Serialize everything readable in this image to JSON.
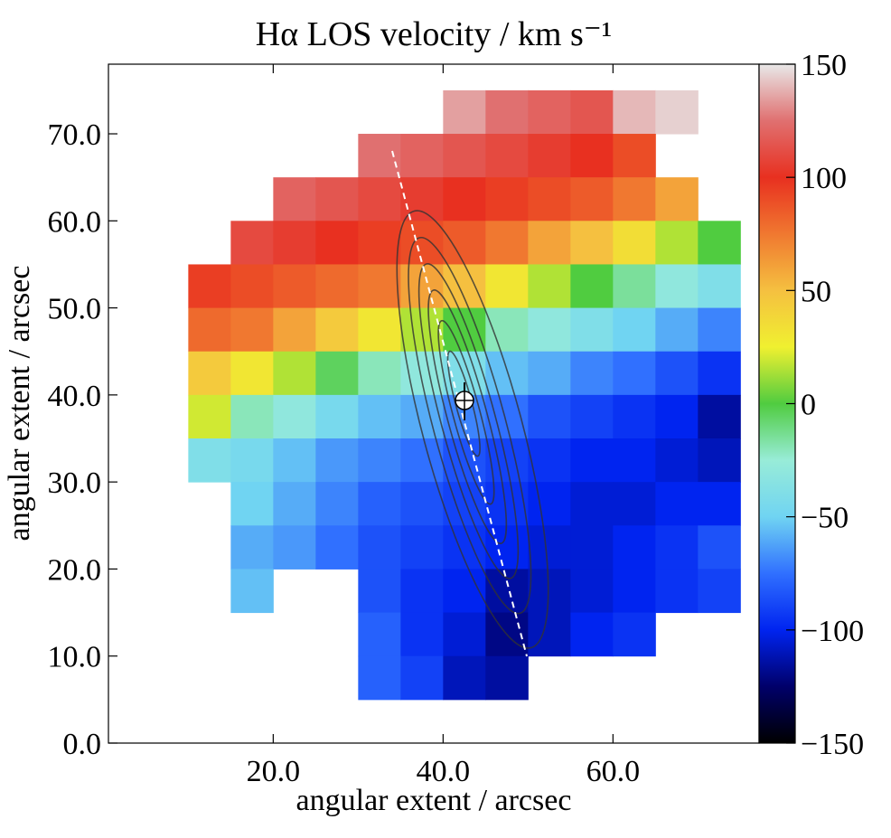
{
  "chart_data": {
    "type": "heatmap",
    "title": "Hα LOS velocity / km s⁻¹",
    "x_label": "angular extent / arcsec",
    "y_label": "angular extent / arcsec",
    "xlim": [
      0.6,
      77.2
    ],
    "ylim": [
      0,
      78
    ],
    "xticks": [
      {
        "value": 20,
        "label": "20.0"
      },
      {
        "value": 40,
        "label": "40.0"
      },
      {
        "value": 60,
        "label": "60.0"
      }
    ],
    "yticks": [
      {
        "value": 0,
        "label": "0.0"
      },
      {
        "value": 10,
        "label": "10.0"
      },
      {
        "value": 20,
        "label": "20.0"
      },
      {
        "value": 30,
        "label": "30.0"
      },
      {
        "value": 40,
        "label": "40.0"
      },
      {
        "value": 50,
        "label": "50.0"
      },
      {
        "value": 60,
        "label": "60.0"
      },
      {
        "value": 70,
        "label": "70.0"
      }
    ],
    "cell_size": 5,
    "x": [
      12.5,
      17.5,
      22.5,
      27.5,
      32.5,
      37.5,
      42.5,
      47.5,
      52.5,
      57.5,
      62.5,
      67.5,
      72.5
    ],
    "y": [
      72.5,
      67.5,
      62.5,
      57.5,
      52.5,
      47.5,
      42.5,
      37.5,
      32.5,
      27.5,
      22.5,
      17.5,
      12.5,
      7.5
    ],
    "values": [
      [
        null,
        null,
        null,
        null,
        null,
        null,
        135,
        125,
        120,
        115,
        140,
        145,
        null
      ],
      [
        null,
        null,
        null,
        null,
        125,
        120,
        115,
        110,
        105,
        100,
        90,
        null,
        null
      ],
      [
        null,
        null,
        120,
        115,
        110,
        105,
        100,
        95,
        90,
        85,
        75,
        60,
        null
      ],
      [
        null,
        110,
        105,
        100,
        95,
        90,
        85,
        75,
        60,
        50,
        35,
        15,
        0
      ],
      [
        95,
        90,
        85,
        80,
        75,
        60,
        50,
        30,
        15,
        0,
        -15,
        -30,
        -40
      ],
      [
        80,
        75,
        60,
        45,
        30,
        15,
        0,
        -20,
        -30,
        -40,
        -50,
        -60,
        -70
      ],
      [
        45,
        30,
        15,
        -5,
        -20,
        -30,
        -40,
        -55,
        -60,
        -70,
        -75,
        -85,
        -95
      ],
      [
        20,
        -20,
        -30,
        -45,
        -55,
        -60,
        -70,
        -75,
        -85,
        -90,
        -95,
        -100,
        -115
      ],
      [
        -40,
        -45,
        -55,
        -65,
        -70,
        -75,
        -85,
        -90,
        -95,
        -100,
        -100,
        -105,
        -110
      ],
      [
        null,
        -50,
        -60,
        -70,
        -80,
        -85,
        -90,
        -95,
        -100,
        -105,
        -105,
        -100,
        -100
      ],
      [
        null,
        -60,
        -65,
        -75,
        -85,
        -90,
        -95,
        -100,
        -105,
        -105,
        -100,
        -95,
        -85
      ],
      [
        null,
        -55,
        null,
        null,
        -85,
        -95,
        -100,
        -115,
        -110,
        -105,
        -100,
        -95,
        -90
      ],
      [
        null,
        null,
        null,
        null,
        -80,
        -95,
        -105,
        -120,
        -110,
        -100,
        -95,
        null,
        null
      ],
      [
        null,
        null,
        null,
        null,
        -80,
        -90,
        -110,
        -115,
        null,
        null,
        null,
        null,
        null
      ]
    ],
    "clim": [
      -150,
      150
    ],
    "colorbar_ticks": [
      {
        "value": 150,
        "label": "150"
      },
      {
        "value": 100,
        "label": "100"
      },
      {
        "value": 50,
        "label": "50"
      },
      {
        "value": 0,
        "label": "0"
      },
      {
        "value": -50,
        "label": "−50"
      },
      {
        "value": -100,
        "label": "−100"
      },
      {
        "value": -150,
        "label": "−150"
      }
    ],
    "colorscale": [
      [
        -150,
        "#000000"
      ],
      [
        -125,
        "#00006a"
      ],
      [
        -100,
        "#0024f0"
      ],
      [
        -75,
        "#3070ff"
      ],
      [
        -50,
        "#70d4f2"
      ],
      [
        -25,
        "#98ecd8"
      ],
      [
        0,
        "#50cc40"
      ],
      [
        25,
        "#f0f030"
      ],
      [
        50,
        "#f5c040"
      ],
      [
        75,
        "#f07830"
      ],
      [
        100,
        "#e83020"
      ],
      [
        125,
        "#e07070"
      ],
      [
        150,
        "#e8e8e8"
      ]
    ]
  }
}
